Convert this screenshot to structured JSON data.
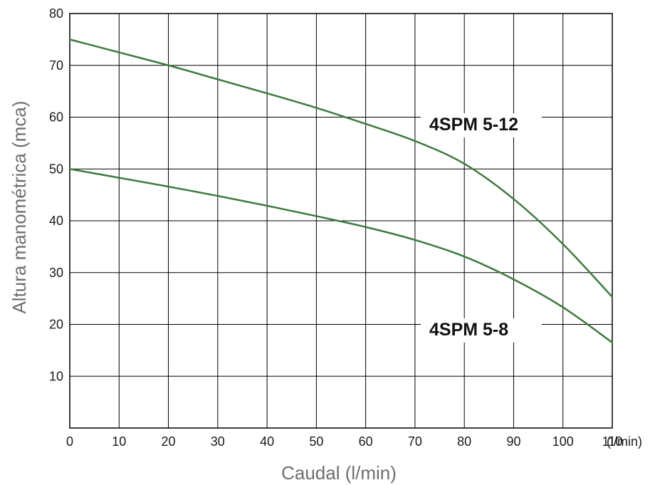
{
  "chart_data": {
    "type": "line",
    "xlabel": "Caudal (l/min)",
    "ylabel": "Altura manométrica (mca)",
    "x_unit_label": "(l/min)",
    "xlim": [
      0,
      110
    ],
    "ylim": [
      0,
      80
    ],
    "xticks": [
      0,
      10,
      20,
      30,
      40,
      50,
      60,
      70,
      80,
      90,
      100,
      110
    ],
    "yticks": [
      10,
      20,
      30,
      40,
      50,
      60,
      70,
      80
    ],
    "grid": true,
    "line_color": "#3f7a3f",
    "series": [
      {
        "name": "4SPM 5-12",
        "points": [
          [
            0,
            75
          ],
          [
            10,
            72.5
          ],
          [
            20,
            70
          ],
          [
            30,
            67.3
          ],
          [
            40,
            64.6
          ],
          [
            50,
            61.8
          ],
          [
            60,
            58.7
          ],
          [
            70,
            55.4
          ],
          [
            80,
            51
          ],
          [
            90,
            44.2
          ],
          [
            100,
            35.5
          ],
          [
            110,
            25.3
          ]
        ]
      },
      {
        "name": "4SPM 5-8",
        "points": [
          [
            0,
            50
          ],
          [
            10,
            48.3
          ],
          [
            20,
            46.6
          ],
          [
            30,
            44.8
          ],
          [
            40,
            42.9
          ],
          [
            50,
            40.9
          ],
          [
            60,
            38.8
          ],
          [
            70,
            36.3
          ],
          [
            80,
            33.1
          ],
          [
            90,
            28.7
          ],
          [
            100,
            23.3
          ],
          [
            110,
            16.5
          ]
        ]
      }
    ]
  }
}
